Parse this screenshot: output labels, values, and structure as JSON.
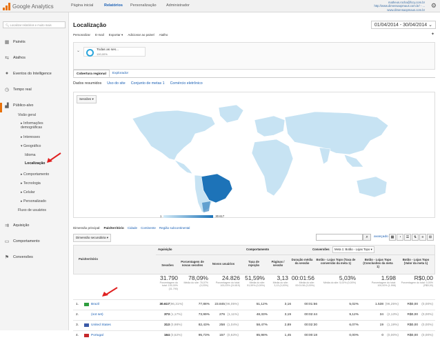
{
  "topbar": {
    "brand": "Google Analytics",
    "nav": [
      "Página inicial",
      "Relatórios",
      "Personalização",
      "Administrador"
    ],
    "account_lines": [
      "matheus.rocha@fccy.com.br",
      "http://www.dimensaopmaus.com.br/ - ...",
      "www.dimensaopmaus.com.br"
    ]
  },
  "sidebar": {
    "search_placeholder": "Localizar relatórios e muito mais",
    "items": [
      {
        "label": "Painéis",
        "icon": "grid-icon"
      },
      {
        "label": "Atalhos",
        "icon": "shortcut-arrows-icon"
      },
      {
        "label": "Eventos do Intelligence",
        "icon": "bulb-icon"
      },
      {
        "label": "Tempo real",
        "icon": "clock-icon"
      },
      {
        "label": "Público-alvo",
        "icon": "people-icon"
      }
    ],
    "audience_sub": [
      "Visão geral",
      "▸ Informações demográficas",
      "▸ Interesses",
      "▾ Geográfico",
      "Idioma",
      "Localização",
      "▸ Comportamento",
      "▸ Tecnologia",
      "▸ Celular",
      "▸ Personalizado",
      "Fluxo de usuários"
    ],
    "lower_items": [
      {
        "label": "Aquisição",
        "icon": "acquisition-icon"
      },
      {
        "label": "Comportamento",
        "icon": "behavior-icon"
      },
      {
        "label": "Conversões",
        "icon": "flag-icon"
      }
    ]
  },
  "page": {
    "title": "Localização",
    "date_range": "01/04/2014 - 30/04/2014",
    "actions": [
      "Personalizar",
      "E-mail",
      "Exportar ▾",
      "Adicionar ao painel",
      "Atalho"
    ],
    "segment": {
      "name": "Todas as ses...",
      "pct": "100,00%"
    },
    "tabs": [
      "Cobertura regional",
      "Explorador"
    ],
    "subtabs": [
      "Dados resumidos",
      "Uso do site",
      "Conjunto de metas 1",
      "Comércio eletrônico"
    ],
    "map_metric": "Sessões",
    "legend_min": "1",
    "legend_max": "30.617"
  },
  "table_controls": {
    "primary_dim_label": "Dimensão principal:",
    "dims": [
      "País/território",
      "Cidade",
      "Continente",
      "Região subcontinental"
    ],
    "secondary_dim": "Dimensão secundária",
    "advanced": "avançado"
  },
  "table": {
    "group_headers": [
      "Aquisição",
      "Comportamento",
      "Conversões",
      "Meta 1: Botão - Lojas Topo"
    ],
    "dim_header": "País/território",
    "col_headers": [
      "Sessões",
      "Porcentagem de novas sessões",
      "Novos usuários",
      "Taxa de rejeição",
      "Páginas / sessão",
      "Duração média da sessão",
      "Botão - Lojas Topo (Taxa de conversão da meta 1)",
      "Botão - Lojas Topo (Conclusões da meta 1)",
      "Botão - Lojas Topo (Valor da meta 1)"
    ],
    "totals": [
      {
        "big": "31.790",
        "small": "Porcentagem do total: 100,00% (31.790)"
      },
      {
        "big": "78,09%",
        "small": "Média do site: 78,07% (0,03%)"
      },
      {
        "big": "24.826",
        "small": "Porcentagem do total: 100,03% (24.819)"
      },
      {
        "big": "51,59%",
        "small": "Média do site: 51,59% (0,00%)"
      },
      {
        "big": "3,13",
        "small": "Média do site: 3,13 (0,00%)"
      },
      {
        "big": "00:01:56",
        "small": "Média do site: 00:01:56 (0,00%)"
      },
      {
        "big": "5,03%",
        "small": "Média do site: 5,03% (0,00%)"
      },
      {
        "big": "1.598",
        "small": "Porcentagem do total: 100,00% (1.598)"
      },
      {
        "big": "R$0,00",
        "small": "Porcentagem do total: 0,00% (R$0,00)"
      }
    ],
    "rows": [
      {
        "n": "1.",
        "country": "Brazil",
        "sessions": "30.617",
        "sessions_pct": "(96,31%)",
        "new_pct": "77,88%",
        "new_users": "23.845",
        "new_users_pct": "(96,05%)",
        "bounce": "51,12%",
        "pages": "3,16",
        "duration": "00:01:56",
        "conv_rate": "5,02%",
        "completions": "1.538",
        "completions_pct": "(96,25%)",
        "value": "R$0,00",
        "value_pct": "(0,00%)",
        "flag": "#2e9d3e"
      },
      {
        "n": "2.",
        "country": "(not set)",
        "sessions": "373",
        "sessions_pct": "(1,17%)",
        "new_pct": "73,99%",
        "new_users": "276",
        "new_users_pct": "(1,11%)",
        "bounce": "48,33%",
        "pages": "3,19",
        "duration": "00:02:44",
        "conv_rate": "9,12%",
        "completions": "34",
        "completions_pct": "(2,13%)",
        "value": "R$0,00",
        "value_pct": "(0,00%)",
        "flag": ""
      },
      {
        "n": "3.",
        "country": "United States",
        "sessions": "313",
        "sessions_pct": "(0,98%)",
        "new_pct": "82,43%",
        "new_users": "258",
        "new_users_pct": "(1,04%)",
        "bounce": "58,47%",
        "pages": "2,89",
        "duration": "00:02:30",
        "conv_rate": "6,07%",
        "completions": "19",
        "completions_pct": "(1,19%)",
        "value": "R$0,00",
        "value_pct": "(0,00%)",
        "flag": "#3b5aa7"
      },
      {
        "n": "4.",
        "country": "Portugal",
        "sessions": "164",
        "sessions_pct": "(0,52%)",
        "new_pct": "95,73%",
        "new_users": "157",
        "new_users_pct": "(0,63%)",
        "bounce": "85,98%",
        "pages": "1,45",
        "duration": "00:00:18",
        "conv_rate": "0,00%",
        "completions": "0",
        "completions_pct": "(0,00%)",
        "value": "R$0,00",
        "value_pct": "(0,00%)",
        "flag": "#c5282b"
      }
    ]
  },
  "colors": {
    "accent": "#e8710a",
    "link": "#1a5fb4",
    "map_high": "#1d73b8",
    "map_low": "#c7e3f3",
    "arrow": "#e02020"
  }
}
